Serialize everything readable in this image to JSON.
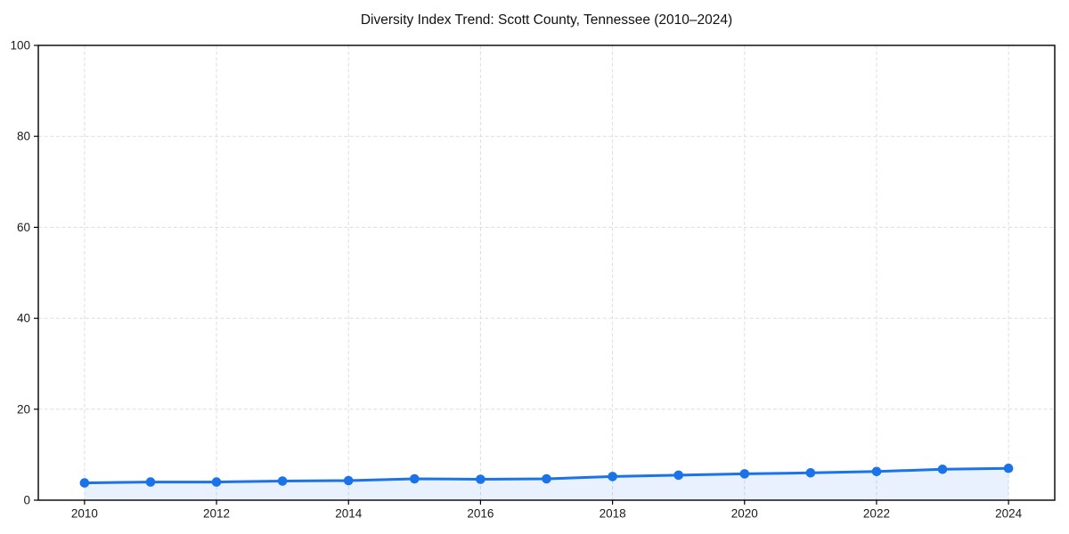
{
  "chart_data": {
    "type": "area",
    "title": "Diversity Index Trend: Scott County, Tennessee (2010–2024)",
    "xlabel": "",
    "ylabel": "",
    "x": [
      2010,
      2011,
      2012,
      2013,
      2014,
      2015,
      2016,
      2017,
      2018,
      2019,
      2020,
      2021,
      2022,
      2023,
      2024
    ],
    "series": [
      {
        "name": "Diversity Index",
        "values": [
          3.8,
          4.0,
          4.0,
          4.2,
          4.3,
          4.7,
          4.6,
          4.7,
          5.2,
          5.5,
          5.8,
          6.0,
          6.3,
          6.8,
          7.0
        ]
      }
    ],
    "xlim": [
      2009.3,
      2024.7
    ],
    "ylim": [
      0,
      100
    ],
    "xticks": [
      2010,
      2012,
      2014,
      2016,
      2018,
      2020,
      2022,
      2024
    ],
    "yticks": [
      0,
      20,
      40,
      60,
      80,
      100
    ],
    "grid": true,
    "grid_style": "dashed",
    "legend": false,
    "colors": {
      "line": "#1a73e8",
      "marker": "#1a73e8",
      "fill": "#1a73e8",
      "fill_opacity": 0.1,
      "grid": "#dedede",
      "spine": "#000000",
      "tick": "#000000",
      "text": "#1a1a1a",
      "background": "#ffffff"
    }
  }
}
